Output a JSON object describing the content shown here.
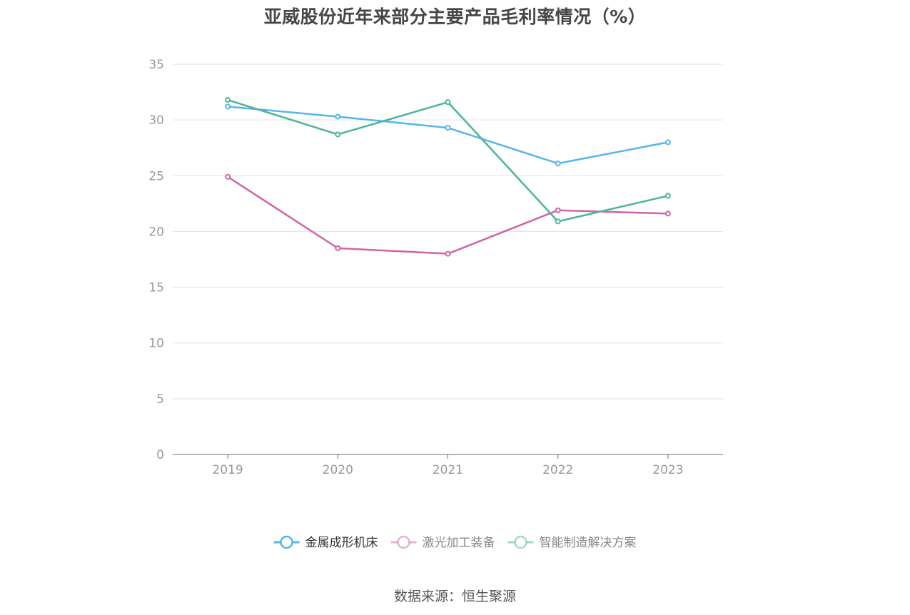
{
  "chart_data": {
    "type": "line",
    "title": "亚威股份近年来部分主要产品毛利率情况（%）",
    "categories": [
      "2019",
      "2020",
      "2021",
      "2022",
      "2023"
    ],
    "ylim": [
      0,
      35
    ],
    "yticks": [
      0,
      5,
      10,
      15,
      20,
      25,
      30,
      35
    ],
    "grid": true,
    "legend_position": "bottom-center",
    "series": [
      {
        "name": "金属成形机床",
        "color": "#56b6ec",
        "values": [
          31.2,
          30.3,
          29.3,
          26.1,
          28.0
        ]
      },
      {
        "name": "激光加工装备",
        "color": "#d064a8",
        "values": [
          24.9,
          18.5,
          18.0,
          21.9,
          21.6
        ]
      },
      {
        "name": "智能制造解决方案",
        "color": "#4cb49c",
        "values": [
          31.8,
          28.7,
          31.6,
          20.9,
          23.2
        ]
      }
    ],
    "source": "数据来源：恒生聚源"
  }
}
